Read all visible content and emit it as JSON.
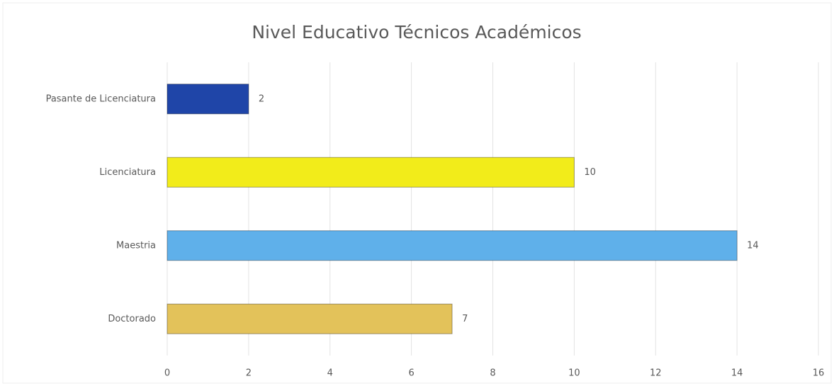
{
  "chart_data": {
    "type": "barh",
    "title": "Nivel Educativo Técnicos Académicos",
    "categories": [
      "Pasante de Licenciatura",
      "Licenciatura",
      "Maestria",
      "Doctorado"
    ],
    "values": [
      2,
      10,
      14,
      7
    ],
    "colors": [
      "#1f45a8",
      "#f2ec1a",
      "#5fb0ea",
      "#e3c25a"
    ],
    "xlim": [
      0,
      16
    ],
    "xticks": [
      0,
      2,
      4,
      6,
      8,
      10,
      12,
      14,
      16
    ],
    "grid": true
  }
}
